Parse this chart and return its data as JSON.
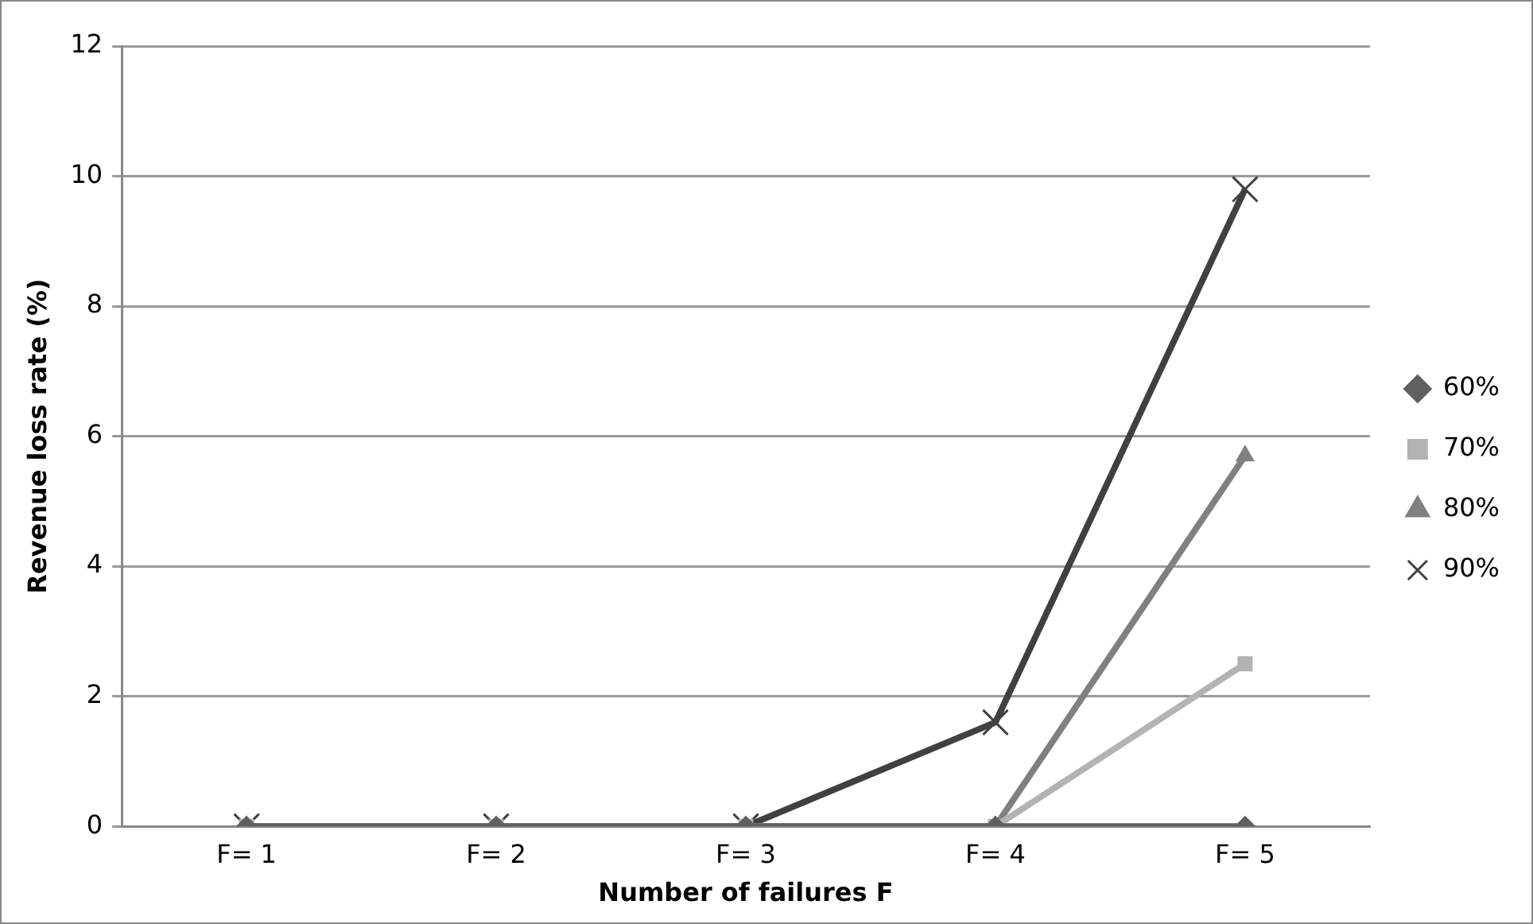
{
  "chart_data": {
    "type": "line",
    "xlabel": "Number of failures F",
    "ylabel": "Revenue loss rate (%)",
    "categories": [
      "F= 1",
      "F= 2",
      "F= 3",
      "F= 4",
      "F= 5"
    ],
    "series": [
      {
        "name": "60%",
        "color": "#606060",
        "marker": "diamond",
        "values": [
          0,
          0,
          0,
          0,
          0
        ]
      },
      {
        "name": "70%",
        "color": "#b3b3b3",
        "marker": "square",
        "values": [
          0,
          0,
          0,
          0,
          2.5
        ]
      },
      {
        "name": "80%",
        "color": "#808080",
        "marker": "triangle",
        "values": [
          0,
          0,
          0,
          0,
          5.7
        ]
      },
      {
        "name": "90%",
        "color": "#404040",
        "marker": "cross",
        "values": [
          0,
          0,
          0,
          1.6,
          9.8
        ]
      }
    ],
    "ylim": [
      0,
      12
    ],
    "yticks": [
      0,
      2,
      4,
      6,
      8,
      10,
      12
    ],
    "grid": "y",
    "legend": "right"
  }
}
